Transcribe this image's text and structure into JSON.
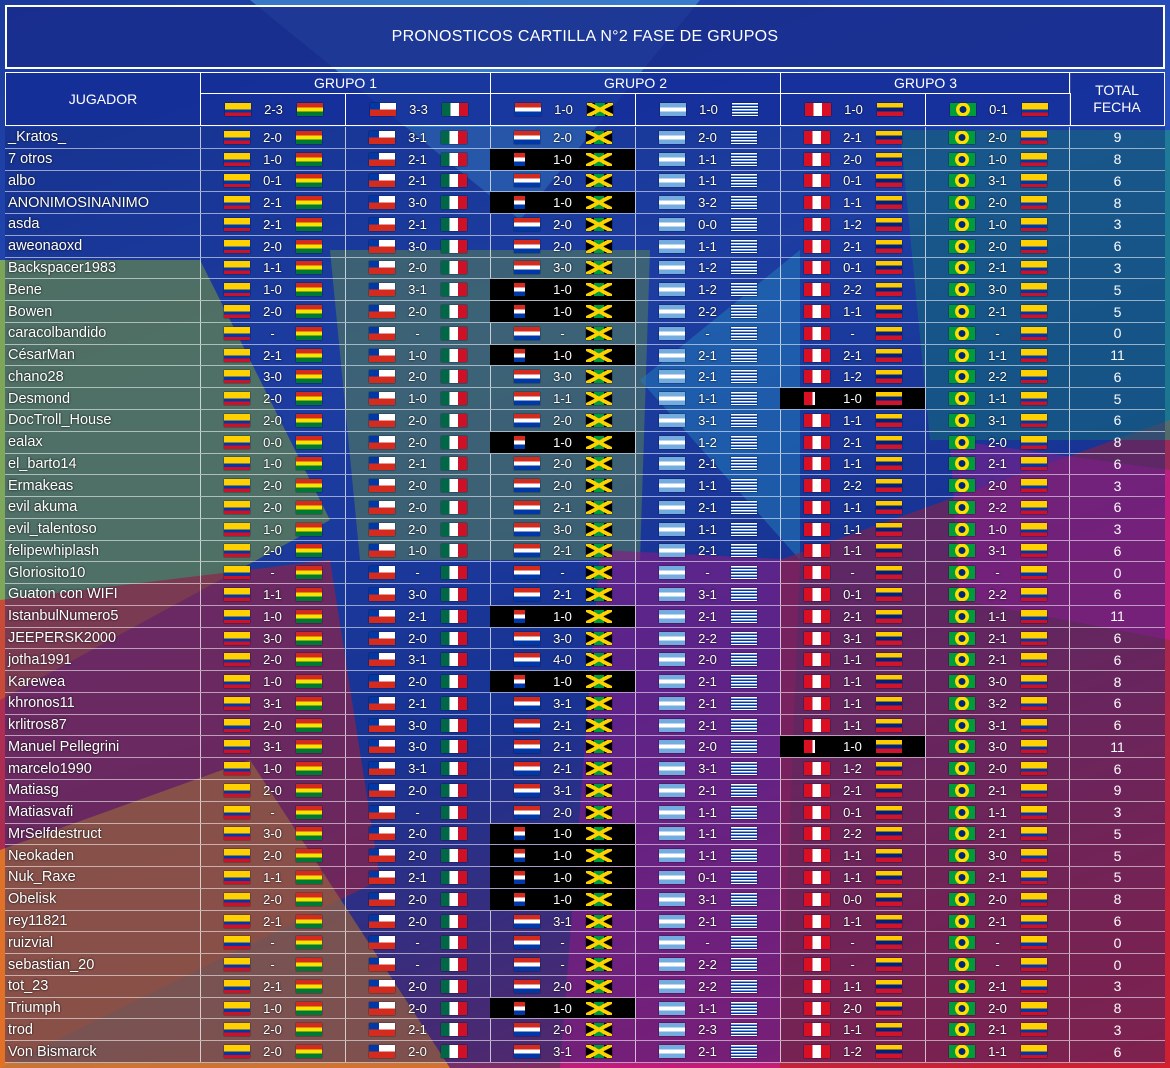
{
  "header": {
    "title": "PRONOSTICOS CARTILLA N°2 FASE DE GRUPOS",
    "jugador": "JUGADOR",
    "groups": [
      "GRUPO 1",
      "GRUPO 2",
      "GRUPO 3"
    ],
    "total": "TOTAL FECHA"
  },
  "results": [
    "2-3",
    "3-3",
    "1-0",
    "1-0",
    "1-0",
    "0-1"
  ],
  "players": [
    {
      "name": "_Kratos_",
      "picks": [
        "2-0",
        "3-1",
        "2-0",
        "2-0",
        "2-1",
        "2-0"
      ],
      "total": 9
    },
    {
      "name": "7 otros",
      "picks": [
        "1-0",
        "2-1",
        "1-0",
        "1-1",
        "2-0",
        "1-0"
      ],
      "total": 8
    },
    {
      "name": "albo",
      "picks": [
        "0-1",
        "2-1",
        "2-0",
        "1-1",
        "0-1",
        "3-1"
      ],
      "total": 6
    },
    {
      "name": "ANONIMOSINANIMO",
      "picks": [
        "2-1",
        "3-0",
        "1-0",
        "3-2",
        "1-1",
        "2-0"
      ],
      "total": 8
    },
    {
      "name": "asda",
      "picks": [
        "2-1",
        "2-1",
        "2-0",
        "0-0",
        "1-2",
        "1-0"
      ],
      "total": 3
    },
    {
      "name": "aweonaoxd",
      "picks": [
        "2-0",
        "3-0",
        "2-0",
        "1-1",
        "2-1",
        "2-0"
      ],
      "total": 6
    },
    {
      "name": "Backspacer1983",
      "picks": [
        "1-1",
        "2-0",
        "3-0",
        "1-2",
        "0-1",
        "2-1"
      ],
      "total": 3
    },
    {
      "name": "Bene",
      "picks": [
        "1-0",
        "3-1",
        "1-0",
        "1-2",
        "2-2",
        "3-0"
      ],
      "total": 5
    },
    {
      "name": "Bowen",
      "picks": [
        "2-0",
        "2-0",
        "1-0",
        "2-2",
        "1-1",
        "2-1"
      ],
      "total": 5
    },
    {
      "name": "caracolbandido",
      "picks": [
        "-",
        "-",
        "-",
        "-",
        "-",
        "-"
      ],
      "total": 0
    },
    {
      "name": "CésarMan",
      "picks": [
        "2-1",
        "1-0",
        "1-0",
        "2-1",
        "2-1",
        "1-1"
      ],
      "total": 11
    },
    {
      "name": "chano28",
      "picks": [
        "3-0",
        "2-0",
        "3-0",
        "2-1",
        "1-2",
        "2-2"
      ],
      "total": 6
    },
    {
      "name": "Desmond",
      "picks": [
        "2-0",
        "1-0",
        "1-1",
        "1-1",
        "1-0",
        "1-1"
      ],
      "total": 5
    },
    {
      "name": "DocTroll_House",
      "picks": [
        "2-0",
        "2-0",
        "2-0",
        "3-1",
        "1-1",
        "3-1"
      ],
      "total": 6
    },
    {
      "name": "ealax",
      "picks": [
        "0-0",
        "2-0",
        "1-0",
        "1-2",
        "2-1",
        "2-0"
      ],
      "total": 8
    },
    {
      "name": "el_barto14",
      "picks": [
        "1-0",
        "2-1",
        "2-0",
        "2-1",
        "1-1",
        "2-1"
      ],
      "total": 6
    },
    {
      "name": "Ermakeas",
      "picks": [
        "2-0",
        "2-0",
        "2-0",
        "1-1",
        "2-2",
        "2-0"
      ],
      "total": 3
    },
    {
      "name": "evil akuma",
      "picks": [
        "2-0",
        "2-0",
        "2-1",
        "2-1",
        "1-1",
        "2-2"
      ],
      "total": 6
    },
    {
      "name": "evil_talentoso",
      "picks": [
        "1-0",
        "2-0",
        "3-0",
        "1-1",
        "1-1",
        "1-0"
      ],
      "total": 3
    },
    {
      "name": "felipewhiplash",
      "picks": [
        "2-0",
        "1-0",
        "2-1",
        "2-1",
        "1-1",
        "3-1"
      ],
      "total": 6
    },
    {
      "name": "Gloriosito10",
      "picks": [
        "-",
        "-",
        "-",
        "-",
        "-",
        "-"
      ],
      "total": 0
    },
    {
      "name": "Guaton con WIFI",
      "picks": [
        "1-1",
        "3-0",
        "2-1",
        "3-1",
        "0-1",
        "2-2"
      ],
      "total": 6
    },
    {
      "name": "IstanbulNumero5",
      "picks": [
        "1-0",
        "2-1",
        "1-0",
        "2-1",
        "2-1",
        "1-1"
      ],
      "total": 11
    },
    {
      "name": "JEEPERSK2000",
      "picks": [
        "3-0",
        "2-0",
        "3-0",
        "2-2",
        "3-1",
        "2-1"
      ],
      "total": 6
    },
    {
      "name": "jotha1991",
      "picks": [
        "2-0",
        "3-1",
        "4-0",
        "2-0",
        "1-1",
        "2-1"
      ],
      "total": 6
    },
    {
      "name": "Karewea",
      "picks": [
        "1-0",
        "2-0",
        "1-0",
        "2-1",
        "1-1",
        "3-0"
      ],
      "total": 8
    },
    {
      "name": "khronos11",
      "picks": [
        "3-1",
        "2-1",
        "3-1",
        "2-1",
        "1-1",
        "3-2"
      ],
      "total": 6
    },
    {
      "name": "krlitros87",
      "picks": [
        "2-0",
        "3-0",
        "2-1",
        "2-1",
        "1-1",
        "3-1"
      ],
      "total": 6
    },
    {
      "name": "Manuel Pellegrini",
      "picks": [
        "3-1",
        "3-0",
        "2-1",
        "2-0",
        "1-0",
        "3-0"
      ],
      "total": 11
    },
    {
      "name": "marcelo1990",
      "picks": [
        "1-0",
        "3-1",
        "2-1",
        "3-1",
        "1-2",
        "2-0"
      ],
      "total": 6
    },
    {
      "name": "Matiasg",
      "picks": [
        "2-0",
        "2-0",
        "3-1",
        "2-1",
        "2-1",
        "2-1"
      ],
      "total": 9
    },
    {
      "name": "Matiasvafi",
      "picks": [
        "-",
        "-",
        "2-0",
        "1-1",
        "0-1",
        "1-1"
      ],
      "total": 3
    },
    {
      "name": "MrSelfdestruct",
      "picks": [
        "3-0",
        "2-0",
        "1-0",
        "1-1",
        "2-2",
        "2-1"
      ],
      "total": 5
    },
    {
      "name": "Neokaden",
      "picks": [
        "2-0",
        "2-0",
        "1-0",
        "1-1",
        "1-1",
        "3-0"
      ],
      "total": 5
    },
    {
      "name": "Nuk_Raxe",
      "picks": [
        "1-1",
        "2-1",
        "1-0",
        "0-1",
        "1-1",
        "2-1"
      ],
      "total": 5
    },
    {
      "name": "Obelisk",
      "picks": [
        "2-0",
        "2-0",
        "1-0",
        "3-1",
        "0-0",
        "2-0"
      ],
      "total": 8
    },
    {
      "name": "rey11821",
      "picks": [
        "2-1",
        "2-0",
        "3-1",
        "2-1",
        "1-1",
        "2-1"
      ],
      "total": 6
    },
    {
      "name": "ruizvial",
      "picks": [
        "-",
        "-",
        "-",
        "-",
        "-",
        "-"
      ],
      "total": 0
    },
    {
      "name": "sebastian_20",
      "picks": [
        "-",
        "-",
        "-",
        "2-2",
        "-",
        "-"
      ],
      "total": 0
    },
    {
      "name": "tot_23",
      "picks": [
        "2-1",
        "2-0",
        "2-0",
        "2-2",
        "1-1",
        "2-1"
      ],
      "total": 3
    },
    {
      "name": "Triumph",
      "picks": [
        "1-0",
        "2-0",
        "1-0",
        "1-1",
        "2-0",
        "2-0"
      ],
      "total": 8
    },
    {
      "name": "trod",
      "picks": [
        "2-0",
        "2-1",
        "2-0",
        "2-3",
        "1-1",
        "2-1"
      ],
      "total": 3
    },
    {
      "name": "Von Bismarck",
      "picks": [
        "2-0",
        "2-0",
        "3-1",
        "2-1",
        "1-2",
        "1-1"
      ],
      "total": 6
    }
  ]
}
